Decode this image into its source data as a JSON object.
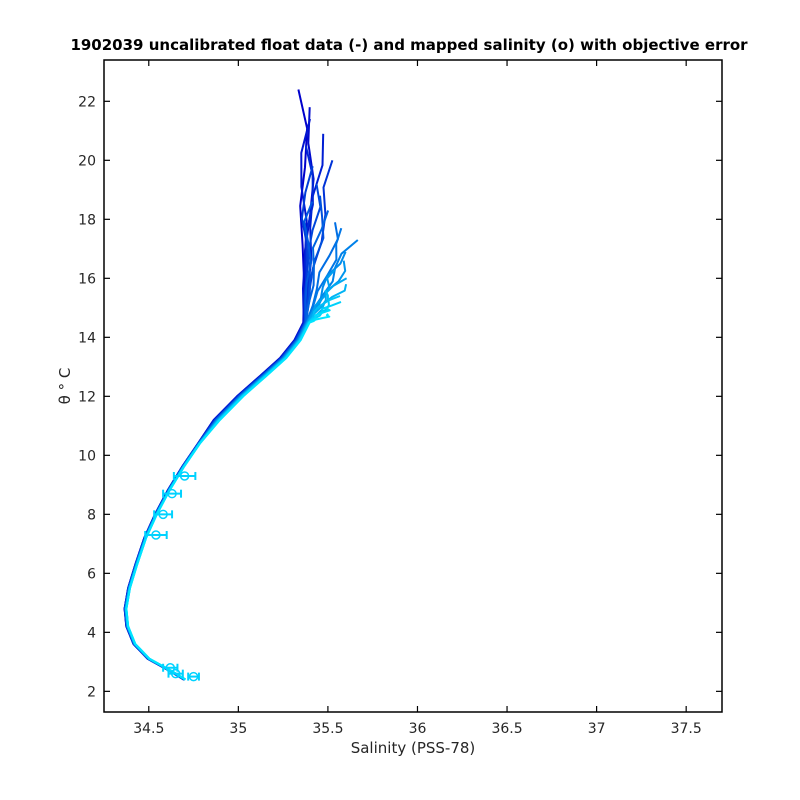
{
  "chart_data": {
    "type": "line",
    "title": "1902039 uncalibrated float data (-) and mapped salinity (o) with objective error",
    "xlabel": "Salinity (PSS-78)",
    "ylabel": "θ ° C",
    "xlim": [
      34.25,
      37.7
    ],
    "ylim": [
      1.3,
      23.4
    ],
    "xticks": [
      34.5,
      35,
      35.5,
      36,
      36.5,
      37,
      37.5
    ],
    "yticks": [
      2,
      4,
      6,
      8,
      10,
      12,
      14,
      16,
      18,
      20,
      22
    ],
    "grid": false,
    "legend": "none",
    "colors": {
      "early_profiles": "#0000cc",
      "late_profiles": "#00e5ff",
      "axes": "#000000",
      "mapped_marker": "#00d2ff"
    },
    "profile_count": 24,
    "deep_profile": {
      "x": [
        34.7,
        34.62,
        34.5,
        34.42,
        34.38,
        34.37,
        34.39,
        34.43,
        34.48,
        34.54,
        34.61,
        34.69,
        34.78,
        34.88,
        35.01,
        35.14,
        35.25,
        35.33,
        35.38
      ],
      "y": [
        2.4,
        2.7,
        3.1,
        3.6,
        4.2,
        4.8,
        5.5,
        6.3,
        7.2,
        8.0,
        8.8,
        9.6,
        10.4,
        11.2,
        12.0,
        12.7,
        13.3,
        13.9,
        14.5
      ]
    },
    "surface_tips": {
      "early_x": [
        35.36,
        35.42,
        35.37,
        35.46,
        35.41,
        35.53,
        35.38,
        35.44,
        35.49,
        35.4,
        35.47,
        35.56
      ],
      "early_y": [
        22.4,
        21.8,
        21.4,
        20.9,
        20.5,
        20.0,
        19.8,
        19.2,
        18.8,
        18.6,
        18.3,
        17.9
      ],
      "late_x": [
        35.6,
        35.64,
        35.58,
        35.62,
        35.55,
        35.57,
        35.6,
        35.52,
        35.56,
        35.54,
        35.5,
        35.53
      ],
      "late_y": [
        17.7,
        17.3,
        16.9,
        16.6,
        16.3,
        16.0,
        15.8,
        15.6,
        15.4,
        15.2,
        15.0,
        14.8
      ]
    },
    "mapped_salinity": {
      "x": [
        34.7,
        34.63,
        34.58,
        34.54,
        34.65,
        34.75,
        34.62
      ],
      "y": [
        9.3,
        8.7,
        8.0,
        7.3,
        2.6,
        2.5,
        2.8
      ],
      "xerr": [
        0.06,
        0.05,
        0.05,
        0.06,
        0.04,
        0.03,
        0.04
      ]
    }
  }
}
